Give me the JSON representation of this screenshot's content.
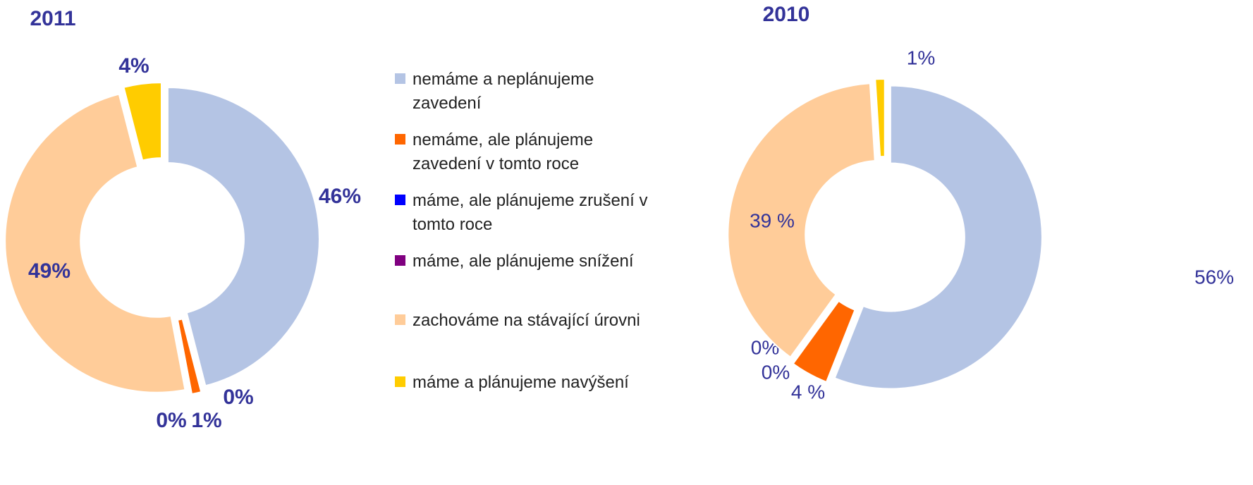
{
  "legend": {
    "labels": [
      "nemáme a neplánujeme zavedení",
      "nemáme, ale plánujeme zavedení v tomto roce",
      "máme, ale plánujeme zrušení v tomto roce",
      "máme, ale plánujeme snížení",
      "zachováme na stávající úrovni",
      "máme a plánujeme navýšení"
    ],
    "colors": [
      "#b4c4e4",
      "#ff6600",
      "#0000ff",
      "#800080",
      "#ffcc99",
      "#ffcc00"
    ]
  },
  "chart_data": [
    {
      "type": "donut",
      "title": "2011",
      "values": [
        46,
        1,
        0,
        0,
        49,
        4
      ],
      "value_labels": [
        "46%",
        "1%",
        "0%",
        "0%",
        "49%",
        "4%"
      ]
    },
    {
      "type": "donut",
      "title": "2010",
      "values": [
        56,
        4,
        0,
        0,
        39,
        1
      ],
      "value_labels": [
        "56%",
        "4 %",
        "0%",
        "0%",
        "39 %",
        "1%"
      ]
    }
  ]
}
